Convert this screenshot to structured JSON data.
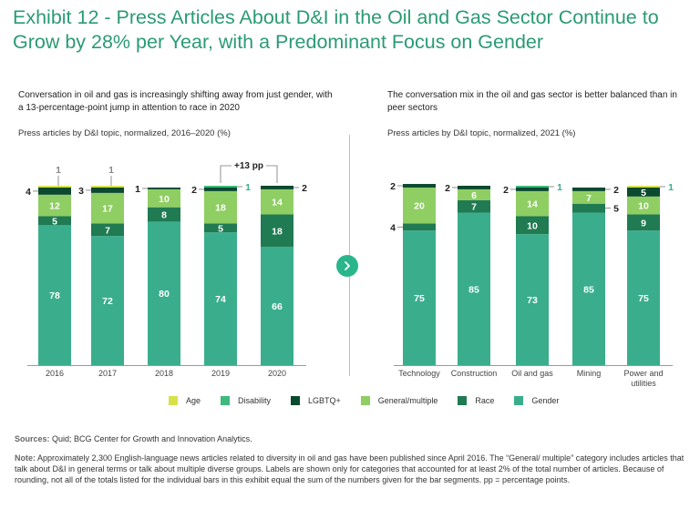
{
  "title": "Exhibit 12 - Press Articles About D&I in the Oil and Gas Sector Continue to Grow by 28% per Year, with a Predominant Focus on Gender",
  "left_panel": {
    "subtitle": "Conversation in oil and gas is increasingly shifting away from just gender, with a 13-percentage-point jump in attention to race in 2020",
    "unit": "Press articles by D&I topic, normalized, 2016–2020 (%)"
  },
  "right_panel": {
    "subtitle": "The conversation mix in the oil and gas sector is better balanced than in peer sectors",
    "unit": "Press articles by D&I topic, normalized, 2021 (%)"
  },
  "legend": [
    {
      "name": "Age",
      "color": "#d7e24a"
    },
    {
      "name": "Disability",
      "color": "#3dba7c"
    },
    {
      "name": "LGBTQ+",
      "color": "#0a4a2e"
    },
    {
      "name": "General/multiple",
      "color": "#8fce63"
    },
    {
      "name": "Race",
      "color": "#207a52"
    },
    {
      "name": "Gender",
      "color": "#3aae8c"
    }
  ],
  "colors": {
    "gender": "#3aae8c",
    "race": "#207a52",
    "general": "#8fce63",
    "lgbtq": "#0a4a2e",
    "disability": "#3dba7c",
    "age": "#d7e24a",
    "title": "#2a9b72",
    "nav": "#2bb58a"
  },
  "chart_data": [
    {
      "type": "bar",
      "stacked": true,
      "title": "Press articles by D&I topic, normalized, 2016–2020 (%)",
      "categories": [
        "2016",
        "2017",
        "2018",
        "2019",
        "2020"
      ],
      "series": [
        {
          "name": "Gender",
          "values": [
            78,
            72,
            80,
            74,
            66
          ]
        },
        {
          "name": "Race",
          "values": [
            5,
            7,
            8,
            5,
            18
          ]
        },
        {
          "name": "General/multiple",
          "values": [
            12,
            17,
            10,
            18,
            14
          ]
        },
        {
          "name": "LGBTQ+",
          "values": [
            4,
            3,
            1,
            2,
            2
          ]
        },
        {
          "name": "Disability",
          "values": [
            0,
            0,
            0,
            1,
            0
          ]
        },
        {
          "name": "Age",
          "values": [
            1,
            1,
            0,
            0,
            0
          ]
        }
      ],
      "labels": [
        [
          {
            "text": "78",
            "series": "Gender",
            "pos": "inside"
          },
          {
            "text": "5",
            "series": "Race",
            "pos": "inside"
          },
          {
            "text": "12",
            "series": "General/multiple",
            "pos": "inside"
          },
          {
            "text": "4",
            "series": "LGBTQ+",
            "pos": "left"
          },
          {
            "text": "1",
            "series": "Age",
            "pos": "above"
          }
        ],
        [
          {
            "text": "72",
            "series": "Gender",
            "pos": "inside"
          },
          {
            "text": "7",
            "series": "Race",
            "pos": "inside"
          },
          {
            "text": "17",
            "series": "General/multiple",
            "pos": "inside"
          },
          {
            "text": "3",
            "series": "LGBTQ+",
            "pos": "left"
          },
          {
            "text": "1",
            "series": "Age",
            "pos": "above"
          }
        ],
        [
          {
            "text": "80",
            "series": "Gender",
            "pos": "inside"
          },
          {
            "text": "8",
            "series": "Race",
            "pos": "inside"
          },
          {
            "text": "10",
            "series": "General/multiple",
            "pos": "inside"
          },
          {
            "text": "1",
            "series": "LGBTQ+",
            "pos": "left"
          }
        ],
        [
          {
            "text": "74",
            "series": "Gender",
            "pos": "inside"
          },
          {
            "text": "5",
            "series": "Race",
            "pos": "inside"
          },
          {
            "text": "18",
            "series": "General/multiple",
            "pos": "inside"
          },
          {
            "text": "2",
            "series": "LGBTQ+",
            "pos": "left"
          },
          {
            "text": "1",
            "series": "Disability",
            "pos": "right"
          }
        ],
        [
          {
            "text": "66",
            "series": "Gender",
            "pos": "inside"
          },
          {
            "text": "18",
            "series": "Race",
            "pos": "inside"
          },
          {
            "text": "14",
            "series": "General/multiple",
            "pos": "inside"
          },
          {
            "text": "2",
            "series": "LGBTQ+",
            "pos": "right"
          }
        ]
      ],
      "annotation": {
        "text": "+13 pp",
        "from": "2019",
        "to": "2020",
        "series": "Race"
      }
    },
    {
      "type": "bar",
      "stacked": true,
      "title": "Press articles by D&I topic, normalized, 2021 (%)",
      "categories": [
        "Technology",
        "Construction",
        "Oil and gas",
        "Mining",
        "Power and utilities"
      ],
      "series": [
        {
          "name": "Gender",
          "values": [
            75,
            85,
            73,
            85,
            75
          ]
        },
        {
          "name": "Race",
          "values": [
            4,
            7,
            10,
            5,
            9
          ]
        },
        {
          "name": "General/multiple",
          "values": [
            20,
            6,
            14,
            7,
            10
          ]
        },
        {
          "name": "LGBTQ+",
          "values": [
            2,
            2,
            2,
            2,
            5
          ]
        },
        {
          "name": "Disability",
          "values": [
            0,
            0,
            1,
            0,
            0
          ]
        },
        {
          "name": "Age",
          "values": [
            0,
            0,
            0,
            0,
            1
          ]
        }
      ],
      "labels": [
        [
          {
            "text": "75",
            "series": "Gender",
            "pos": "inside"
          },
          {
            "text": "4",
            "series": "Race",
            "pos": "left"
          },
          {
            "text": "20",
            "series": "General/multiple",
            "pos": "inside"
          },
          {
            "text": "2",
            "series": "LGBTQ+",
            "pos": "left"
          }
        ],
        [
          {
            "text": "85",
            "series": "Gender",
            "pos": "inside"
          },
          {
            "text": "7",
            "series": "Race",
            "pos": "inside"
          },
          {
            "text": "6",
            "series": "General/multiple",
            "pos": "inside"
          },
          {
            "text": "2",
            "series": "LGBTQ+",
            "pos": "left"
          }
        ],
        [
          {
            "text": "73",
            "series": "Gender",
            "pos": "inside"
          },
          {
            "text": "10",
            "series": "Race",
            "pos": "inside"
          },
          {
            "text": "14",
            "series": "General/multiple",
            "pos": "inside"
          },
          {
            "text": "2",
            "series": "LGBTQ+",
            "pos": "left"
          },
          {
            "text": "1",
            "series": "Disability",
            "pos": "right"
          }
        ],
        [
          {
            "text": "85",
            "series": "Gender",
            "pos": "inside"
          },
          {
            "text": "5",
            "series": "Race",
            "pos": "right"
          },
          {
            "text": "7",
            "series": "General/multiple",
            "pos": "inside"
          },
          {
            "text": "2",
            "series": "LGBTQ+",
            "pos": "right"
          }
        ],
        [
          {
            "text": "75",
            "series": "Gender",
            "pos": "inside"
          },
          {
            "text": "9",
            "series": "Race",
            "pos": "inside"
          },
          {
            "text": "10",
            "series": "General/multiple",
            "pos": "inside"
          },
          {
            "text": "5",
            "series": "LGBTQ+",
            "pos": "inside"
          },
          {
            "text": "1",
            "series": "Age",
            "pos": "right"
          }
        ]
      ]
    }
  ],
  "sources": {
    "label": "Sources:",
    "text": "Quid; BCG Center for Growth and Innovation Analytics."
  },
  "note": {
    "label": "Note:",
    "text": "Approximately 2,300 English-language news articles related to diversity in oil and gas have been published since April 2016. The “General/ multiple” category includes articles that talk about D&I in general terms or talk about multiple diverse groups. Labels are shown only for categories that accounted for at least 2% of the total number of articles. Because of rounding, not all of the totals listed for the individual bars in this exhibit equal the sum of the numbers given for the bar segments. pp = percentage points."
  }
}
